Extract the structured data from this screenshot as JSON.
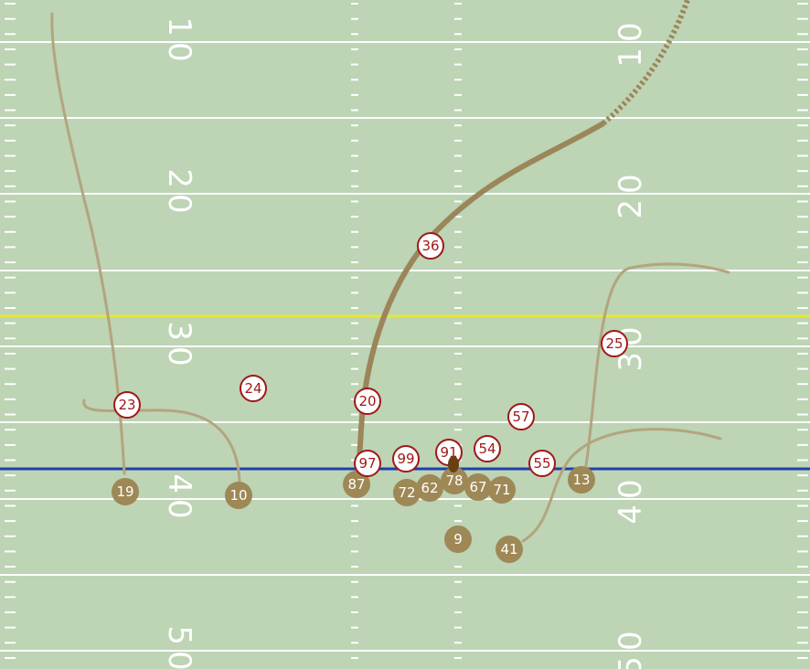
{
  "yard_numbers": [
    "10",
    "20",
    "30",
    "40",
    "50"
  ],
  "offense": [
    "19",
    "10",
    "87",
    "72",
    "62",
    "78",
    "67",
    "71",
    "13",
    "9",
    "41"
  ],
  "defense": [
    "23",
    "24",
    "20",
    "97",
    "99",
    "91",
    "54",
    "57",
    "55",
    "25",
    "36"
  ]
}
